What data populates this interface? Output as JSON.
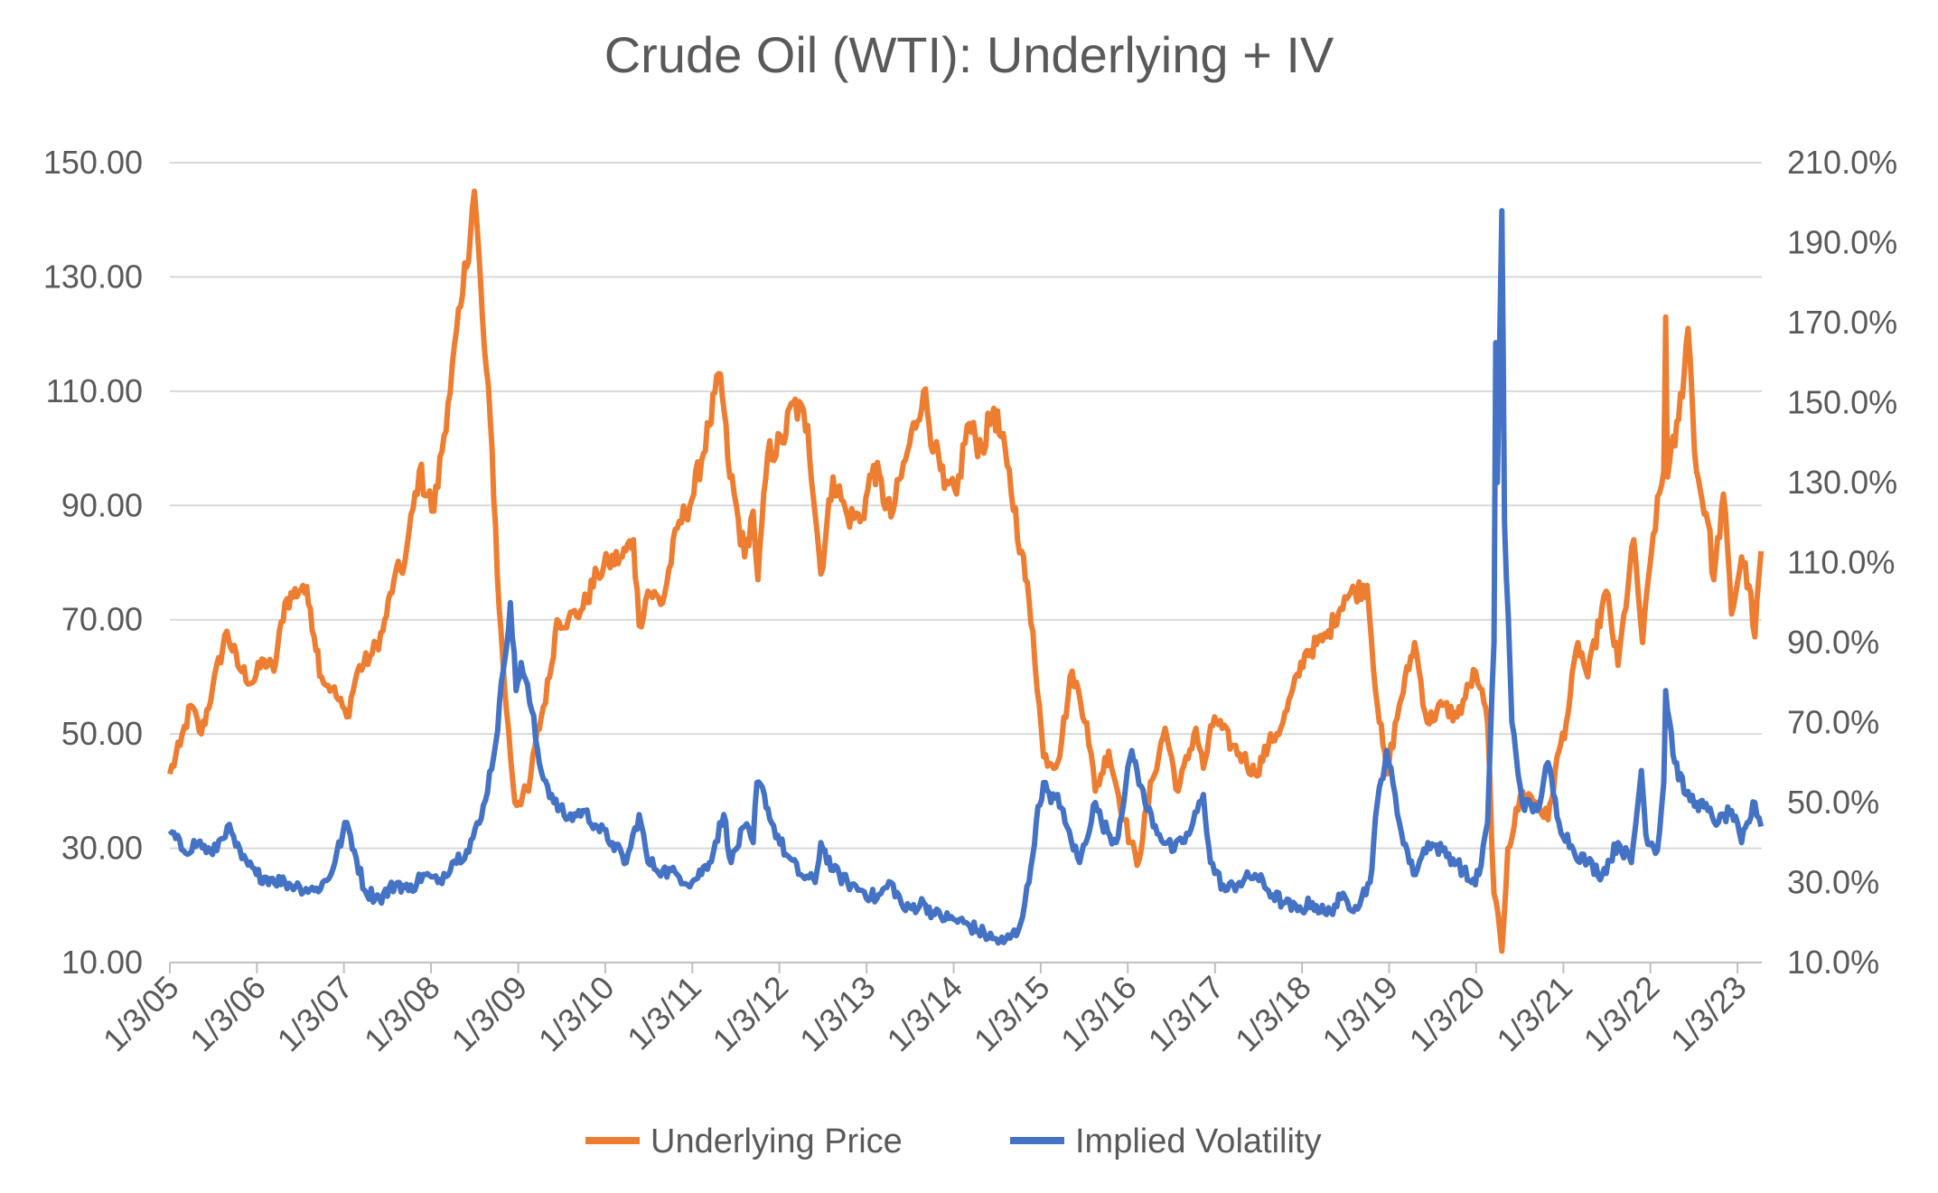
{
  "chart_data": {
    "type": "line",
    "title": "Crude Oil (WTI): Underlying + IV",
    "xlabel": "",
    "ylabel": "",
    "grid": "horizontal",
    "legend": "bottom",
    "x_ticks": [
      "1/3/05",
      "1/3/06",
      "1/3/07",
      "1/3/08",
      "1/3/09",
      "1/3/10",
      "1/3/11",
      "1/3/12",
      "1/3/13",
      "1/3/14",
      "1/3/15",
      "1/3/16",
      "1/3/17",
      "1/3/18",
      "1/3/19",
      "1/3/20",
      "1/3/21",
      "1/3/22",
      "1/3/23"
    ],
    "x_range": [
      "2005-01-03",
      "2023-04-15"
    ],
    "y_left": {
      "min": 10,
      "max": 150,
      "ticks": [
        "10.00",
        "30.00",
        "50.00",
        "70.00",
        "90.00",
        "110.00",
        "130.00",
        "150.00"
      ]
    },
    "y_right": {
      "min": 10,
      "max": 210,
      "ticks": [
        "10.0%",
        "30.0%",
        "50.0%",
        "70.0%",
        "90.0%",
        "110.0%",
        "130.0%",
        "150.0%",
        "170.0%",
        "190.0%",
        "210.0%"
      ]
    },
    "series": [
      {
        "name": "Underlying Price",
        "axis": "left",
        "color": "#ED7D31",
        "points": [
          [
            "2005-01-03",
            43
          ],
          [
            "2005-02-15",
            48
          ],
          [
            "2005-04-01",
            55
          ],
          [
            "2005-05-15",
            50
          ],
          [
            "2005-07-01",
            58
          ],
          [
            "2005-08-30",
            68
          ],
          [
            "2005-10-15",
            62
          ],
          [
            "2005-12-15",
            59
          ],
          [
            "2006-02-01",
            63
          ],
          [
            "2006-03-15",
            61
          ],
          [
            "2006-05-01",
            73
          ],
          [
            "2006-07-15",
            76
          ],
          [
            "2006-08-15",
            72
          ],
          [
            "2006-10-01",
            60
          ],
          [
            "2006-11-15",
            58
          ],
          [
            "2007-01-15",
            53
          ],
          [
            "2007-03-01",
            61
          ],
          [
            "2007-05-01",
            64
          ],
          [
            "2007-06-15",
            68
          ],
          [
            "2007-08-01",
            77
          ],
          [
            "2007-09-15",
            80
          ],
          [
            "2007-11-15",
            96
          ],
          [
            "2008-01-15",
            89
          ],
          [
            "2008-03-15",
            108
          ],
          [
            "2008-05-15",
            127
          ],
          [
            "2008-07-03",
            145
          ],
          [
            "2008-08-15",
            117
          ],
          [
            "2008-09-15",
            100
          ],
          [
            "2008-10-15",
            72
          ],
          [
            "2008-11-15",
            54
          ],
          [
            "2008-12-20",
            38
          ],
          [
            "2009-02-15",
            40
          ],
          [
            "2009-03-15",
            48
          ],
          [
            "2009-05-15",
            60
          ],
          [
            "2009-06-15",
            70
          ],
          [
            "2009-08-01",
            70
          ],
          [
            "2009-10-01",
            72
          ],
          [
            "2009-12-01",
            78
          ],
          [
            "2010-01-15",
            80
          ],
          [
            "2010-03-15",
            81
          ],
          [
            "2010-05-01",
            84
          ],
          [
            "2010-05-25",
            69
          ],
          [
            "2010-07-01",
            75
          ],
          [
            "2010-09-01",
            73
          ],
          [
            "2010-11-01",
            86
          ],
          [
            "2011-01-01",
            91
          ],
          [
            "2011-03-15",
            104
          ],
          [
            "2011-05-01",
            113
          ],
          [
            "2011-06-01",
            98
          ],
          [
            "2011-08-10",
            81
          ],
          [
            "2011-09-15",
            89
          ],
          [
            "2011-10-05",
            77
          ],
          [
            "2011-11-15",
            99
          ],
          [
            "2012-01-15",
            101
          ],
          [
            "2012-03-01",
            108
          ],
          [
            "2012-05-01",
            104
          ],
          [
            "2012-06-25",
            78
          ],
          [
            "2012-08-15",
            95
          ],
          [
            "2012-10-15",
            88
          ],
          [
            "2012-12-15",
            88
          ],
          [
            "2013-02-01",
            97
          ],
          [
            "2013-04-15",
            88
          ],
          [
            "2013-06-15",
            98
          ],
          [
            "2013-08-30",
            110
          ],
          [
            "2013-10-15",
            100
          ],
          [
            "2013-11-25",
            93
          ],
          [
            "2014-01-15",
            92
          ],
          [
            "2014-03-01",
            104
          ],
          [
            "2014-05-01",
            100
          ],
          [
            "2014-06-20",
            107
          ],
          [
            "2014-08-15",
            97
          ],
          [
            "2014-10-15",
            82
          ],
          [
            "2014-12-01",
            68
          ],
          [
            "2015-01-15",
            46
          ],
          [
            "2015-03-15",
            45
          ],
          [
            "2015-05-15",
            61
          ],
          [
            "2015-07-15",
            52
          ],
          [
            "2015-08-20",
            40
          ],
          [
            "2015-10-15",
            47
          ],
          [
            "2015-12-20",
            35
          ],
          [
            "2016-02-11",
            27
          ],
          [
            "2016-04-15",
            42
          ],
          [
            "2016-06-08",
            51
          ],
          [
            "2016-08-01",
            40
          ],
          [
            "2016-10-15",
            51
          ],
          [
            "2016-11-15",
            44
          ],
          [
            "2017-01-01",
            53
          ],
          [
            "2017-03-15",
            48
          ],
          [
            "2017-05-01",
            46
          ],
          [
            "2017-06-20",
            43
          ],
          [
            "2017-08-15",
            48
          ],
          [
            "2017-10-15",
            52
          ],
          [
            "2018-01-15",
            64
          ],
          [
            "2018-04-15",
            67
          ],
          [
            "2018-07-01",
            74
          ],
          [
            "2018-10-03",
            76
          ],
          [
            "2018-11-15",
            55
          ],
          [
            "2018-12-24",
            43
          ],
          [
            "2019-02-15",
            55
          ],
          [
            "2019-04-20",
            66
          ],
          [
            "2019-06-12",
            52
          ],
          [
            "2019-08-15",
            55
          ],
          [
            "2019-10-15",
            53
          ],
          [
            "2019-12-31",
            61
          ],
          [
            "2020-01-20",
            58
          ],
          [
            "2020-02-20",
            52
          ],
          [
            "2020-03-18",
            22
          ],
          [
            "2020-04-20",
            12
          ],
          [
            "2020-05-15",
            30
          ],
          [
            "2020-07-15",
            40
          ],
          [
            "2020-09-15",
            38
          ],
          [
            "2020-10-30",
            35
          ],
          [
            "2020-12-15",
            47
          ],
          [
            "2021-01-15",
            52
          ],
          [
            "2021-03-05",
            66
          ],
          [
            "2021-04-15",
            60
          ],
          [
            "2021-07-01",
            75
          ],
          [
            "2021-08-20",
            62
          ],
          [
            "2021-10-25",
            84
          ],
          [
            "2021-12-01",
            66
          ],
          [
            "2022-01-15",
            85
          ],
          [
            "2022-02-28",
            96
          ],
          [
            "2022-03-08",
            123
          ],
          [
            "2022-03-16",
            95
          ],
          [
            "2022-05-01",
            105
          ],
          [
            "2022-06-10",
            121
          ],
          [
            "2022-07-15",
            96
          ],
          [
            "2022-09-01",
            87
          ],
          [
            "2022-09-26",
            77
          ],
          [
            "2022-11-05",
            92
          ],
          [
            "2022-12-09",
            71
          ],
          [
            "2023-01-20",
            81
          ],
          [
            "2023-02-20",
            76
          ],
          [
            "2023-03-17",
            67
          ],
          [
            "2023-04-12",
            82
          ]
        ]
      },
      {
        "name": "Implied Volatility",
        "axis": "right",
        "color": "#4472C4",
        "points": [
          [
            "2005-01-03",
            43
          ],
          [
            "2005-03-01",
            38
          ],
          [
            "2005-05-01",
            40
          ],
          [
            "2005-07-01",
            37
          ],
          [
            "2005-09-01",
            44
          ],
          [
            "2005-11-01",
            36
          ],
          [
            "2006-01-01",
            32
          ],
          [
            "2006-03-01",
            31
          ],
          [
            "2006-05-01",
            30
          ],
          [
            "2006-07-01",
            29
          ],
          [
            "2006-09-01",
            28
          ],
          [
            "2006-11-01",
            31
          ],
          [
            "2007-01-15",
            45
          ],
          [
            "2007-02-15",
            38
          ],
          [
            "2007-04-01",
            28
          ],
          [
            "2007-06-01",
            26
          ],
          [
            "2007-08-15",
            30
          ],
          [
            "2007-10-01",
            28
          ],
          [
            "2007-12-01",
            32
          ],
          [
            "2008-02-01",
            30
          ],
          [
            "2008-04-01",
            35
          ],
          [
            "2008-06-01",
            38
          ],
          [
            "2008-08-01",
            46
          ],
          [
            "2008-10-01",
            65
          ],
          [
            "2008-11-01",
            83
          ],
          [
            "2008-12-01",
            100
          ],
          [
            "2008-12-25",
            78
          ],
          [
            "2009-01-15",
            85
          ],
          [
            "2009-03-01",
            73
          ],
          [
            "2009-04-01",
            60
          ],
          [
            "2009-06-01",
            50
          ],
          [
            "2009-08-01",
            46
          ],
          [
            "2009-10-01",
            48
          ],
          [
            "2009-12-01",
            44
          ],
          [
            "2010-02-01",
            40
          ],
          [
            "2010-04-01",
            35
          ],
          [
            "2010-05-25",
            47
          ],
          [
            "2010-07-01",
            35
          ],
          [
            "2010-09-01",
            33
          ],
          [
            "2010-11-01",
            32
          ],
          [
            "2011-01-01",
            30
          ],
          [
            "2011-03-15",
            35
          ],
          [
            "2011-05-15",
            47
          ],
          [
            "2011-06-15",
            35
          ],
          [
            "2011-08-10",
            44
          ],
          [
            "2011-09-15",
            40
          ],
          [
            "2011-10-01",
            55
          ],
          [
            "2011-11-01",
            52
          ],
          [
            "2011-12-01",
            45
          ],
          [
            "2012-02-01",
            37
          ],
          [
            "2012-04-01",
            32
          ],
          [
            "2012-06-01",
            30
          ],
          [
            "2012-06-25",
            40
          ],
          [
            "2012-08-15",
            33
          ],
          [
            "2012-10-15",
            30
          ],
          [
            "2012-12-15",
            28
          ],
          [
            "2013-02-15",
            26
          ],
          [
            "2013-04-15",
            30
          ],
          [
            "2013-06-15",
            23
          ],
          [
            "2013-08-30",
            25
          ],
          [
            "2013-10-15",
            22
          ],
          [
            "2013-12-15",
            21
          ],
          [
            "2014-02-15",
            20
          ],
          [
            "2014-04-15",
            18
          ],
          [
            "2014-06-15",
            16
          ],
          [
            "2014-08-01",
            15
          ],
          [
            "2014-10-01",
            18
          ],
          [
            "2014-11-15",
            30
          ],
          [
            "2014-12-15",
            45
          ],
          [
            "2015-01-15",
            55
          ],
          [
            "2015-02-15",
            50
          ],
          [
            "2015-03-15",
            52
          ],
          [
            "2015-04-15",
            45
          ],
          [
            "2015-06-15",
            35
          ],
          [
            "2015-08-20",
            50
          ],
          [
            "2015-09-15",
            45
          ],
          [
            "2015-11-15",
            40
          ],
          [
            "2016-01-20",
            63
          ],
          [
            "2016-02-11",
            58
          ],
          [
            "2016-03-15",
            50
          ],
          [
            "2016-05-15",
            42
          ],
          [
            "2016-07-15",
            38
          ],
          [
            "2016-09-15",
            42
          ],
          [
            "2016-11-15",
            52
          ],
          [
            "2016-12-15",
            35
          ],
          [
            "2017-02-15",
            28
          ],
          [
            "2017-04-15",
            30
          ],
          [
            "2017-06-20",
            32
          ],
          [
            "2017-08-15",
            28
          ],
          [
            "2017-10-15",
            25
          ],
          [
            "2017-12-15",
            23
          ],
          [
            "2018-02-15",
            25
          ],
          [
            "2018-04-15",
            22
          ],
          [
            "2018-06-15",
            26
          ],
          [
            "2018-08-15",
            24
          ],
          [
            "2018-10-15",
            30
          ],
          [
            "2018-11-15",
            50
          ],
          [
            "2018-12-24",
            63
          ],
          [
            "2019-02-15",
            45
          ],
          [
            "2019-04-15",
            32
          ],
          [
            "2019-06-15",
            40
          ],
          [
            "2019-08-15",
            38
          ],
          [
            "2019-10-15",
            35
          ],
          [
            "2019-12-15",
            30
          ],
          [
            "2020-01-15",
            32
          ],
          [
            "2020-02-20",
            45
          ],
          [
            "2020-03-18",
            90
          ],
          [
            "2020-03-25",
            165
          ],
          [
            "2020-04-01",
            130
          ],
          [
            "2020-04-20",
            198
          ],
          [
            "2020-05-01",
            120
          ],
          [
            "2020-06-01",
            70
          ],
          [
            "2020-07-15",
            50
          ],
          [
            "2020-09-15",
            48
          ],
          [
            "2020-10-30",
            60
          ],
          [
            "2020-12-15",
            45
          ],
          [
            "2021-02-15",
            38
          ],
          [
            "2021-04-15",
            35
          ],
          [
            "2021-06-15",
            32
          ],
          [
            "2021-08-20",
            40
          ],
          [
            "2021-10-15",
            35
          ],
          [
            "2021-11-26",
            58
          ],
          [
            "2021-12-15",
            42
          ],
          [
            "2022-02-01",
            38
          ],
          [
            "2022-02-28",
            55
          ],
          [
            "2022-03-08",
            78
          ],
          [
            "2022-04-15",
            60
          ],
          [
            "2022-06-01",
            52
          ],
          [
            "2022-07-15",
            50
          ],
          [
            "2022-09-01",
            48
          ],
          [
            "2022-10-15",
            45
          ],
          [
            "2022-12-09",
            48
          ],
          [
            "2023-01-20",
            40
          ],
          [
            "2023-03-17",
            50
          ],
          [
            "2023-04-12",
            44
          ]
        ]
      }
    ]
  }
}
